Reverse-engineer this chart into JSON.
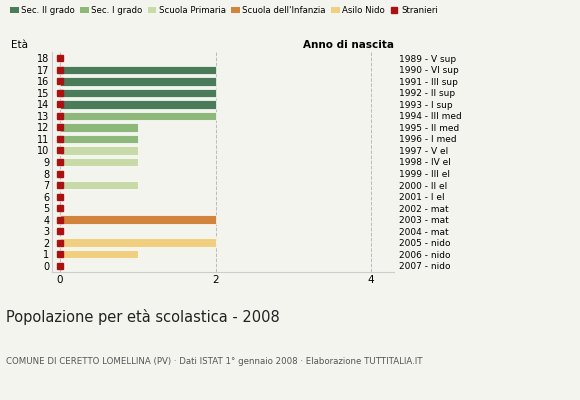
{
  "ages": [
    18,
    17,
    16,
    15,
    14,
    13,
    12,
    11,
    10,
    9,
    8,
    7,
    6,
    5,
    4,
    3,
    2,
    1,
    0
  ],
  "anno_nascita": [
    "1989 - V sup",
    "1990 - VI sup",
    "1991 - III sup",
    "1992 - II sup",
    "1993 - I sup",
    "1994 - III med",
    "1995 - II med",
    "1996 - I med",
    "1997 - V el",
    "1998 - IV el",
    "1999 - III el",
    "2000 - II el",
    "2001 - I el",
    "2002 - mat",
    "2003 - mat",
    "2004 - mat",
    "2005 - nido",
    "2006 - nido",
    "2007 - nido"
  ],
  "bar_values": [
    0,
    2,
    2,
    2,
    2,
    2,
    1,
    1,
    1,
    1,
    0,
    1,
    0,
    0,
    2,
    0,
    2,
    1,
    0
  ],
  "bar_colors": [
    "#4a7c59",
    "#4a7c59",
    "#4a7c59",
    "#4a7c59",
    "#4a7c59",
    "#8db87a",
    "#8db87a",
    "#8db87a",
    "#c8daa8",
    "#c8daa8",
    "#c8daa8",
    "#c8daa8",
    "#c8daa8",
    "#c8daa8",
    "#d2843c",
    "#d2843c",
    "#f0d080",
    "#f0d080",
    "#f0d080"
  ],
  "stranieri_color": "#aa1111",
  "legend_labels": [
    "Sec. II grado",
    "Sec. I grado",
    "Scuola Primaria",
    "Scuola dell'Infanzia",
    "Asilo Nido",
    "Stranieri"
  ],
  "legend_colors": [
    "#4a7c59",
    "#8db87a",
    "#c8daa8",
    "#d2843c",
    "#f0d080",
    "#aa1111"
  ],
  "ylabel_left": "Età",
  "ylabel_right": "Anno di nascita",
  "title": "Popolazione per età scolastica - 2008",
  "subtitle": "COMUNE DI CERETTO LOMELLINA (PV) · Dati ISTAT 1° gennaio 2008 · Elaborazione TUTTITALIA.IT",
  "xlim": [
    -0.1,
    4.3
  ],
  "xticks": [
    0,
    2,
    4
  ],
  "background_color": "#f4f4ef",
  "bar_height": 0.72,
  "stranieri_size": 4
}
